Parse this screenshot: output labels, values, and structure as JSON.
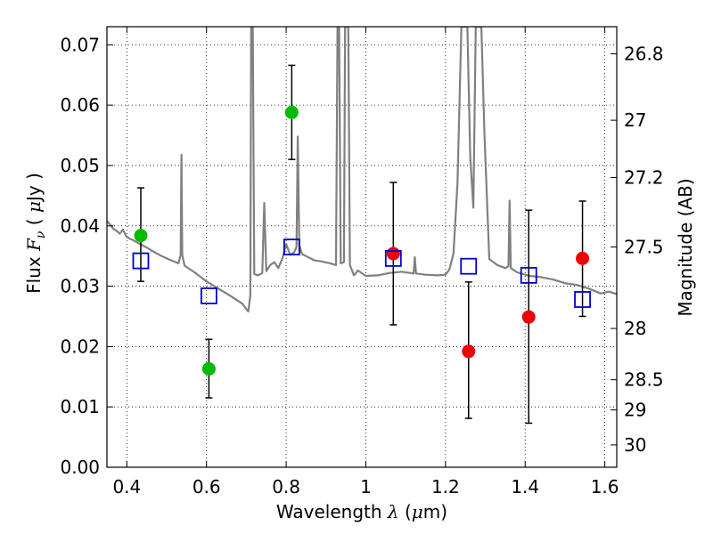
{
  "chart_data": {
    "type": "scatter",
    "xlabel": {
      "prefix": "Wavelength",
      "symbol": "λ",
      "unit_open": " (",
      "unit_mu": "μ",
      "unit_rest": "m)"
    },
    "ylabel": {
      "prefix": "Flux",
      "symbol": "F",
      "subscript": "ν",
      "unit_open": "( ",
      "unit_mu": "μ",
      "unit_rest": "Jy )"
    },
    "y2label": "Magnitude (AB)",
    "xlim": [
      0.35,
      1.63
    ],
    "ylim": [
      0.0,
      0.073
    ],
    "x_ticks": [
      0.4,
      0.6,
      0.8,
      1.0,
      1.2,
      1.4,
      1.6
    ],
    "x_tick_labels": [
      "0.4",
      "0.6",
      "0.8",
      "1",
      "1.2",
      "1.4",
      "1.6"
    ],
    "y_ticks": [
      0.0,
      0.01,
      0.02,
      0.03,
      0.04,
      0.05,
      0.06,
      0.07
    ],
    "y_tick_labels": [
      "0.00",
      "0.01",
      "0.02",
      "0.03",
      "0.04",
      "0.05",
      "0.06",
      "0.07"
    ],
    "y2_ticks": [
      {
        "flux": 0.0685,
        "label": "26.8"
      },
      {
        "flux": 0.0575,
        "label": "27"
      },
      {
        "flux": 0.048,
        "label": "27.2"
      },
      {
        "flux": 0.0365,
        "label": "27.5"
      },
      {
        "flux": 0.023,
        "label": "28"
      },
      {
        "flux": 0.0145,
        "label": "28.5"
      },
      {
        "flux": 0.0095,
        "label": "29"
      },
      {
        "flux": 0.0037,
        "label": "30"
      }
    ],
    "grid": true,
    "colors": {
      "spectrum": "#808080",
      "green_points": "#00bb00",
      "red_points": "#ee0000",
      "model_squares": "#0000cc",
      "error_bars": "#000000"
    },
    "series": [
      {
        "marker": "circle",
        "color": "#00bb00",
        "points": [
          {
            "x": 0.435,
            "y": 0.0384,
            "err_lo": 0.0308,
            "err_hi": 0.0463
          },
          {
            "x": 0.606,
            "y": 0.0163,
            "err_lo": 0.0115,
            "err_hi": 0.0212
          },
          {
            "x": 0.814,
            "y": 0.0588,
            "err_lo": 0.051,
            "err_hi": 0.0666
          }
        ]
      },
      {
        "marker": "circle",
        "color": "#ee0000",
        "points": [
          {
            "x": 1.069,
            "y": 0.0354,
            "err_lo": 0.0236,
            "err_hi": 0.0472
          },
          {
            "x": 1.258,
            "y": 0.0192,
            "err_lo": 0.0081,
            "err_hi": 0.0307
          },
          {
            "x": 1.409,
            "y": 0.0249,
            "err_lo": 0.0073,
            "err_hi": 0.0426
          },
          {
            "x": 1.544,
            "y": 0.0346,
            "err_lo": 0.025,
            "err_hi": 0.0441
          }
        ]
      },
      {
        "marker": "open-square",
        "color": "#0000cc",
        "points": [
          {
            "x": 0.435,
            "y": 0.0342
          },
          {
            "x": 0.606,
            "y": 0.0284
          },
          {
            "x": 0.814,
            "y": 0.0365
          },
          {
            "x": 1.069,
            "y": 0.0346
          },
          {
            "x": 1.258,
            "y": 0.0333
          },
          {
            "x": 1.409,
            "y": 0.0318
          },
          {
            "x": 1.544,
            "y": 0.0278
          }
        ]
      }
    ],
    "spectrum": {
      "points": [
        [
          0.35,
          0.0408
        ],
        [
          0.358,
          0.0402
        ],
        [
          0.366,
          0.0395
        ],
        [
          0.374,
          0.0392
        ],
        [
          0.382,
          0.0387
        ],
        [
          0.39,
          0.0394
        ],
        [
          0.398,
          0.0383
        ],
        [
          0.406,
          0.0379
        ],
        [
          0.414,
          0.0377
        ],
        [
          0.43,
          0.0371
        ],
        [
          0.45,
          0.0364
        ],
        [
          0.47,
          0.0356
        ],
        [
          0.49,
          0.0349
        ],
        [
          0.51,
          0.0343
        ],
        [
          0.53,
          0.0338
        ],
        [
          0.535,
          0.0352
        ],
        [
          0.537,
          0.0518
        ],
        [
          0.539,
          0.0352
        ],
        [
          0.545,
          0.0334
        ],
        [
          0.57,
          0.0323
        ],
        [
          0.6,
          0.0308
        ],
        [
          0.63,
          0.0296
        ],
        [
          0.66,
          0.0284
        ],
        [
          0.69,
          0.0271
        ],
        [
          0.7,
          0.0262
        ],
        [
          0.705,
          0.0258
        ],
        [
          0.71,
          0.0285
        ],
        [
          0.712,
          0.073
        ],
        [
          0.716,
          0.073
        ],
        [
          0.72,
          0.032
        ],
        [
          0.73,
          0.0318
        ],
        [
          0.74,
          0.0322
        ],
        [
          0.745,
          0.0438
        ],
        [
          0.75,
          0.0325
        ],
        [
          0.76,
          0.0335
        ],
        [
          0.77,
          0.034
        ],
        [
          0.78,
          0.033
        ],
        [
          0.79,
          0.0345
        ],
        [
          0.8,
          0.037
        ],
        [
          0.81,
          0.0352
        ],
        [
          0.82,
          0.0356
        ],
        [
          0.826,
          0.0365
        ],
        [
          0.829,
          0.0548
        ],
        [
          0.833,
          0.0368
        ],
        [
          0.84,
          0.0353
        ],
        [
          0.85,
          0.035
        ],
        [
          0.87,
          0.0343
        ],
        [
          0.89,
          0.0341
        ],
        [
          0.91,
          0.0338
        ],
        [
          0.925,
          0.0335
        ],
        [
          0.929,
          0.073
        ],
        [
          0.933,
          0.073
        ],
        [
          0.937,
          0.0338
        ],
        [
          0.945,
          0.034
        ],
        [
          0.948,
          0.073
        ],
        [
          0.952,
          0.073
        ],
        [
          0.956,
          0.073
        ],
        [
          0.96,
          0.0335
        ],
        [
          0.97,
          0.0318
        ],
        [
          0.98,
          0.0326
        ],
        [
          1.0,
          0.0317
        ],
        [
          1.03,
          0.0318
        ],
        [
          1.06,
          0.0322
        ],
        [
          1.09,
          0.0324
        ],
        [
          1.12,
          0.0321
        ],
        [
          1.123,
          0.0348
        ],
        [
          1.126,
          0.0321
        ],
        [
          1.15,
          0.0319
        ],
        [
          1.18,
          0.0318
        ],
        [
          1.2,
          0.0319
        ],
        [
          1.21,
          0.0328
        ],
        [
          1.22,
          0.0354
        ],
        [
          1.23,
          0.047
        ],
        [
          1.24,
          0.073
        ],
        [
          1.255,
          0.073
        ],
        [
          1.262,
          0.0515
        ],
        [
          1.27,
          0.043
        ],
        [
          1.276,
          0.073
        ],
        [
          1.29,
          0.073
        ],
        [
          1.298,
          0.055
        ],
        [
          1.31,
          0.0345
        ],
        [
          1.33,
          0.0335
        ],
        [
          1.35,
          0.033
        ],
        [
          1.358,
          0.0333
        ],
        [
          1.361,
          0.0442
        ],
        [
          1.364,
          0.033
        ],
        [
          1.38,
          0.0323
        ],
        [
          1.41,
          0.0317
        ],
        [
          1.44,
          0.0315
        ],
        [
          1.47,
          0.0311
        ],
        [
          1.5,
          0.0305
        ],
        [
          1.53,
          0.0302
        ],
        [
          1.56,
          0.0296
        ],
        [
          1.59,
          0.0288
        ],
        [
          1.61,
          0.0291
        ],
        [
          1.63,
          0.0287
        ]
      ]
    }
  }
}
